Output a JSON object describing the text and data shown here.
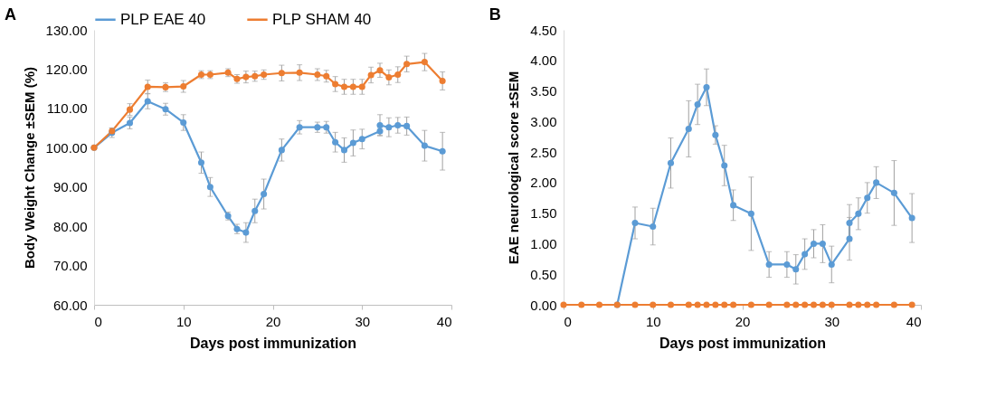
{
  "chart_data": [
    {
      "type": "line",
      "title": "A",
      "xlabel": "Days post immunization",
      "ylabel": "Body Weight Change ±SEM (%)",
      "xlim": [
        0,
        40
      ],
      "xticks": [
        0,
        10,
        20,
        30,
        40
      ],
      "ylim": [
        60,
        130
      ],
      "yticks": [
        {
          "value": 60,
          "label": "60.00"
        },
        {
          "value": 70,
          "label": "70.00"
        },
        {
          "value": 80,
          "label": "80.00"
        },
        {
          "value": 90,
          "label": "90.00"
        },
        {
          "value": 100,
          "label": "100.00"
        },
        {
          "value": 110,
          "label": "110.00"
        },
        {
          "value": 120,
          "label": "120.00"
        },
        {
          "value": 130,
          "label": "130.00"
        }
      ],
      "legend": "top",
      "marker": "circle",
      "grid": false,
      "series": [
        {
          "name": "PLP EAE 40",
          "color": "#5b9bd5",
          "x": [
            0,
            2,
            4,
            6,
            8,
            10,
            12,
            13,
            15,
            16,
            17,
            18,
            19,
            21,
            23,
            25,
            26,
            27,
            28,
            29,
            30,
            32,
            32,
            33,
            34,
            35,
            37,
            39
          ],
          "values": [
            100.0,
            103.8,
            106.3,
            111.8,
            109.8,
            106.4,
            96.2,
            90.0,
            82.6,
            79.3,
            78.4,
            83.9,
            88.2,
            99.4,
            105.2,
            105.2,
            105.2,
            101.4,
            99.4,
            101.2,
            102.2,
            104.2,
            105.7,
            105.2,
            105.7,
            105.5,
            100.5,
            99.1
          ],
          "errors": [
            0,
            1.2,
            1.5,
            1.9,
            1.5,
            2.0,
            2.7,
            2.4,
            1.0,
            1.2,
            2.5,
            3.0,
            3.8,
            2.8,
            1.7,
            1.3,
            1.5,
            2.5,
            3.1,
            3.3,
            2.5,
            1.0,
            2.7,
            2.4,
            2.0,
            2.3,
            3.9,
            4.8
          ]
        },
        {
          "name": "PLP SHAM 40",
          "color": "#ed7d31",
          "x": [
            0,
            2,
            4,
            6,
            8,
            10,
            12,
            13,
            15,
            16,
            17,
            18,
            19,
            21,
            23,
            25,
            26,
            27,
            28,
            29,
            30,
            31,
            32,
            33,
            34,
            35,
            37,
            39
          ],
          "values": [
            100.0,
            104.2,
            109.7,
            115.5,
            115.4,
            115.6,
            118.6,
            118.6,
            119.1,
            117.5,
            118.0,
            118.2,
            118.6,
            119.0,
            119.1,
            118.6,
            118.2,
            116.2,
            115.5,
            115.5,
            115.5,
            118.5,
            119.7,
            117.9,
            118.6,
            121.3,
            121.8,
            117.0
          ],
          "errors": [
            0,
            0.8,
            1.5,
            1.7,
            1.1,
            1.5,
            1.0,
            1.0,
            1.0,
            1.1,
            1.5,
            1.3,
            1.2,
            2.0,
            2.0,
            1.5,
            1.5,
            1.9,
            1.9,
            1.9,
            1.9,
            2.0,
            1.8,
            1.9,
            2.0,
            2.0,
            2.2,
            2.3
          ]
        }
      ]
    },
    {
      "type": "line",
      "title": "B",
      "xlabel": "Days post immunization",
      "ylabel": "EAE neurological score ±SEM",
      "xlim": [
        0,
        40
      ],
      "xticks": [
        0,
        10,
        20,
        30,
        40
      ],
      "ylim": [
        0,
        4.5
      ],
      "yticks": [
        {
          "value": 0,
          "label": "0.00"
        },
        {
          "value": 0.5,
          "label": "0.50"
        },
        {
          "value": 1,
          "label": "1.00"
        },
        {
          "value": 1.5,
          "label": "1.50"
        },
        {
          "value": 2,
          "label": "2.00"
        },
        {
          "value": 2.5,
          "label": "2.50"
        },
        {
          "value": 3,
          "label": "3.00"
        },
        {
          "value": 3.5,
          "label": "3.50"
        },
        {
          "value": 4,
          "label": "4.00"
        },
        {
          "value": 4.5,
          "label": "4.50"
        }
      ],
      "legend": "top",
      "marker": "circle",
      "grid": false,
      "series": [
        {
          "name": "PLP EAE 40",
          "color": "#5b9bd5",
          "x": [
            6,
            8,
            10,
            12,
            14,
            15,
            16,
            17,
            18,
            19,
            21,
            23,
            25,
            26,
            27,
            28,
            29,
            30,
            32,
            32,
            33,
            34,
            35,
            37,
            39
          ],
          "values": [
            0,
            1.34,
            1.28,
            2.32,
            2.88,
            3.28,
            3.56,
            2.78,
            2.28,
            1.63,
            1.49,
            0.66,
            0.66,
            0.58,
            0.83,
            1.0,
            1.0,
            0.66,
            1.08,
            1.34,
            1.49,
            1.75,
            2.0,
            1.83,
            1.42
          ],
          "errors": [
            0,
            0.26,
            0.3,
            0.41,
            0.46,
            0.33,
            0.3,
            0.15,
            0.33,
            0.25,
            0.6,
            0.21,
            0.21,
            0.24,
            0.25,
            0.23,
            0.31,
            0.3,
            0.35,
            0.3,
            0.26,
            0.25,
            0.26,
            0.53,
            0.4
          ]
        },
        {
          "name": "PLP SHAM 40",
          "color": "#ed7d31",
          "x": [
            0,
            2,
            4,
            6,
            8,
            10,
            12,
            14,
            15,
            16,
            17,
            18,
            19,
            21,
            23,
            25,
            26,
            27,
            28,
            29,
            30,
            32,
            33,
            34,
            35,
            37,
            39
          ],
          "values": [
            0,
            0,
            0,
            0,
            0,
            0,
            0,
            0,
            0,
            0,
            0,
            0,
            0,
            0,
            0,
            0,
            0,
            0,
            0,
            0,
            0,
            0,
            0,
            0,
            0,
            0,
            0
          ]
        }
      ]
    }
  ]
}
